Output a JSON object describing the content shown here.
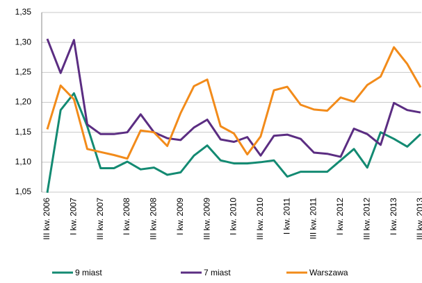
{
  "chart_data": {
    "type": "line",
    "categories": [
      "III kw. 2006",
      null,
      "I kw. 2007",
      null,
      "III kw. 2007",
      null,
      "I kw. 2008",
      null,
      "III kw. 2008",
      null,
      "I kw. 2009",
      null,
      "III kw. 2009",
      null,
      "I kw. 2010",
      null,
      "III kw. 2010",
      null,
      "I kw. 2011",
      null,
      "III kw. 2011",
      null,
      "I kw. 2012",
      null,
      "III kw. 2012",
      null,
      "I kw. 2013",
      null,
      "III kw. 2013"
    ],
    "series": [
      {
        "name": "9 miast",
        "color": "#138a72",
        "values": [
          1.049,
          1.187,
          1.215,
          1.16,
          1.09,
          1.09,
          1.101,
          1.088,
          1.091,
          1.079,
          1.083,
          1.111,
          1.128,
          1.103,
          1.098,
          1.098,
          1.1,
          1.103,
          1.076,
          1.084,
          1.084,
          1.084,
          1.103,
          1.122,
          1.091,
          1.15,
          1.139,
          1.126,
          1.147
        ]
      },
      {
        "name": "7 miast",
        "color": "#5b2d82",
        "values": [
          1.306,
          1.249,
          1.304,
          1.163,
          1.147,
          1.147,
          1.15,
          1.18,
          1.15,
          1.14,
          1.137,
          1.158,
          1.171,
          1.138,
          1.134,
          1.142,
          1.111,
          1.144,
          1.146,
          1.139,
          1.116,
          1.114,
          1.109,
          1.156,
          1.147,
          1.129,
          1.199,
          1.187,
          1.183
        ]
      },
      {
        "name": "Warszawa",
        "color": "#f28b1a",
        "values": [
          1.155,
          1.228,
          1.205,
          1.122,
          1.117,
          1.112,
          1.106,
          1.153,
          1.15,
          1.127,
          1.182,
          1.227,
          1.238,
          1.16,
          1.148,
          1.113,
          1.143,
          1.22,
          1.226,
          1.196,
          1.188,
          1.186,
          1.208,
          1.201,
          1.229,
          1.243,
          1.292,
          1.264,
          1.225
        ]
      }
    ],
    "ylim": [
      1.05,
      1.35
    ],
    "yticks": [
      {
        "value": 1.05,
        "label": "1,05"
      },
      {
        "value": 1.1,
        "label": "1,10"
      },
      {
        "value": 1.15,
        "label": "1,15"
      },
      {
        "value": 1.2,
        "label": "1,20"
      },
      {
        "value": 1.25,
        "label": "1,25"
      },
      {
        "value": 1.3,
        "label": "1,30"
      },
      {
        "value": 1.35,
        "label": "1,35"
      }
    ],
    "grid": true
  }
}
